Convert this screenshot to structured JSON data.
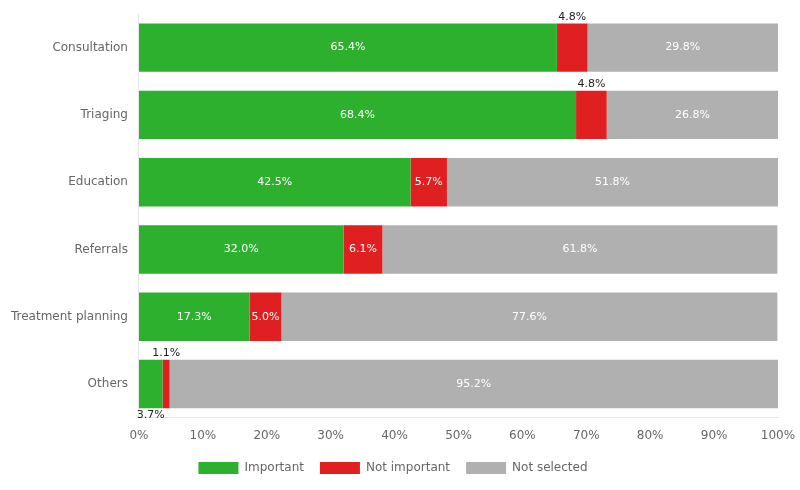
{
  "chart_data": {
    "type": "bar",
    "orientation": "horizontal",
    "stacked": true,
    "categories": [
      "Consultation",
      "Triaging",
      "Education",
      "Referrals",
      "Treatment planning",
      "Others"
    ],
    "series": [
      {
        "name": "Important",
        "color": "#2db02d",
        "values": [
          65.4,
          68.4,
          42.5,
          32.0,
          17.3,
          3.7
        ],
        "value_labels": [
          "65.4%",
          "68.4%",
          "42.5%",
          "32.0%",
          "17.3%",
          "3.7%"
        ]
      },
      {
        "name": "Not important",
        "color": "#e02020",
        "values": [
          4.8,
          4.8,
          5.7,
          6.1,
          5.0,
          1.1
        ],
        "value_labels": [
          "4.8%",
          "4.8%",
          "5.7%",
          "6.1%",
          "5.0%",
          "1.1%"
        ]
      },
      {
        "name": "Not selected",
        "color": "#b0b0b0",
        "values": [
          29.8,
          26.8,
          51.8,
          61.8,
          77.6,
          95.2
        ],
        "value_labels": [
          "29.8%",
          "26.8%",
          "51.8%",
          "61.8%",
          "77.6%",
          "95.2%"
        ]
      }
    ],
    "xlim": [
      0,
      100
    ],
    "xticks": [
      {
        "value": 0,
        "label": "0%"
      },
      {
        "value": 10,
        "label": "10%"
      },
      {
        "value": 20,
        "label": "20%"
      },
      {
        "value": 30,
        "label": "30%"
      },
      {
        "value": 40,
        "label": "40%"
      },
      {
        "value": 50,
        "label": "50%"
      },
      {
        "value": 60,
        "label": "60%"
      },
      {
        "value": 70,
        "label": "70%"
      },
      {
        "value": 80,
        "label": "80%"
      },
      {
        "value": 90,
        "label": "90%"
      },
      {
        "value": 100,
        "label": "100%"
      }
    ],
    "grid": false,
    "legend": "bottom",
    "data_labels": true
  }
}
